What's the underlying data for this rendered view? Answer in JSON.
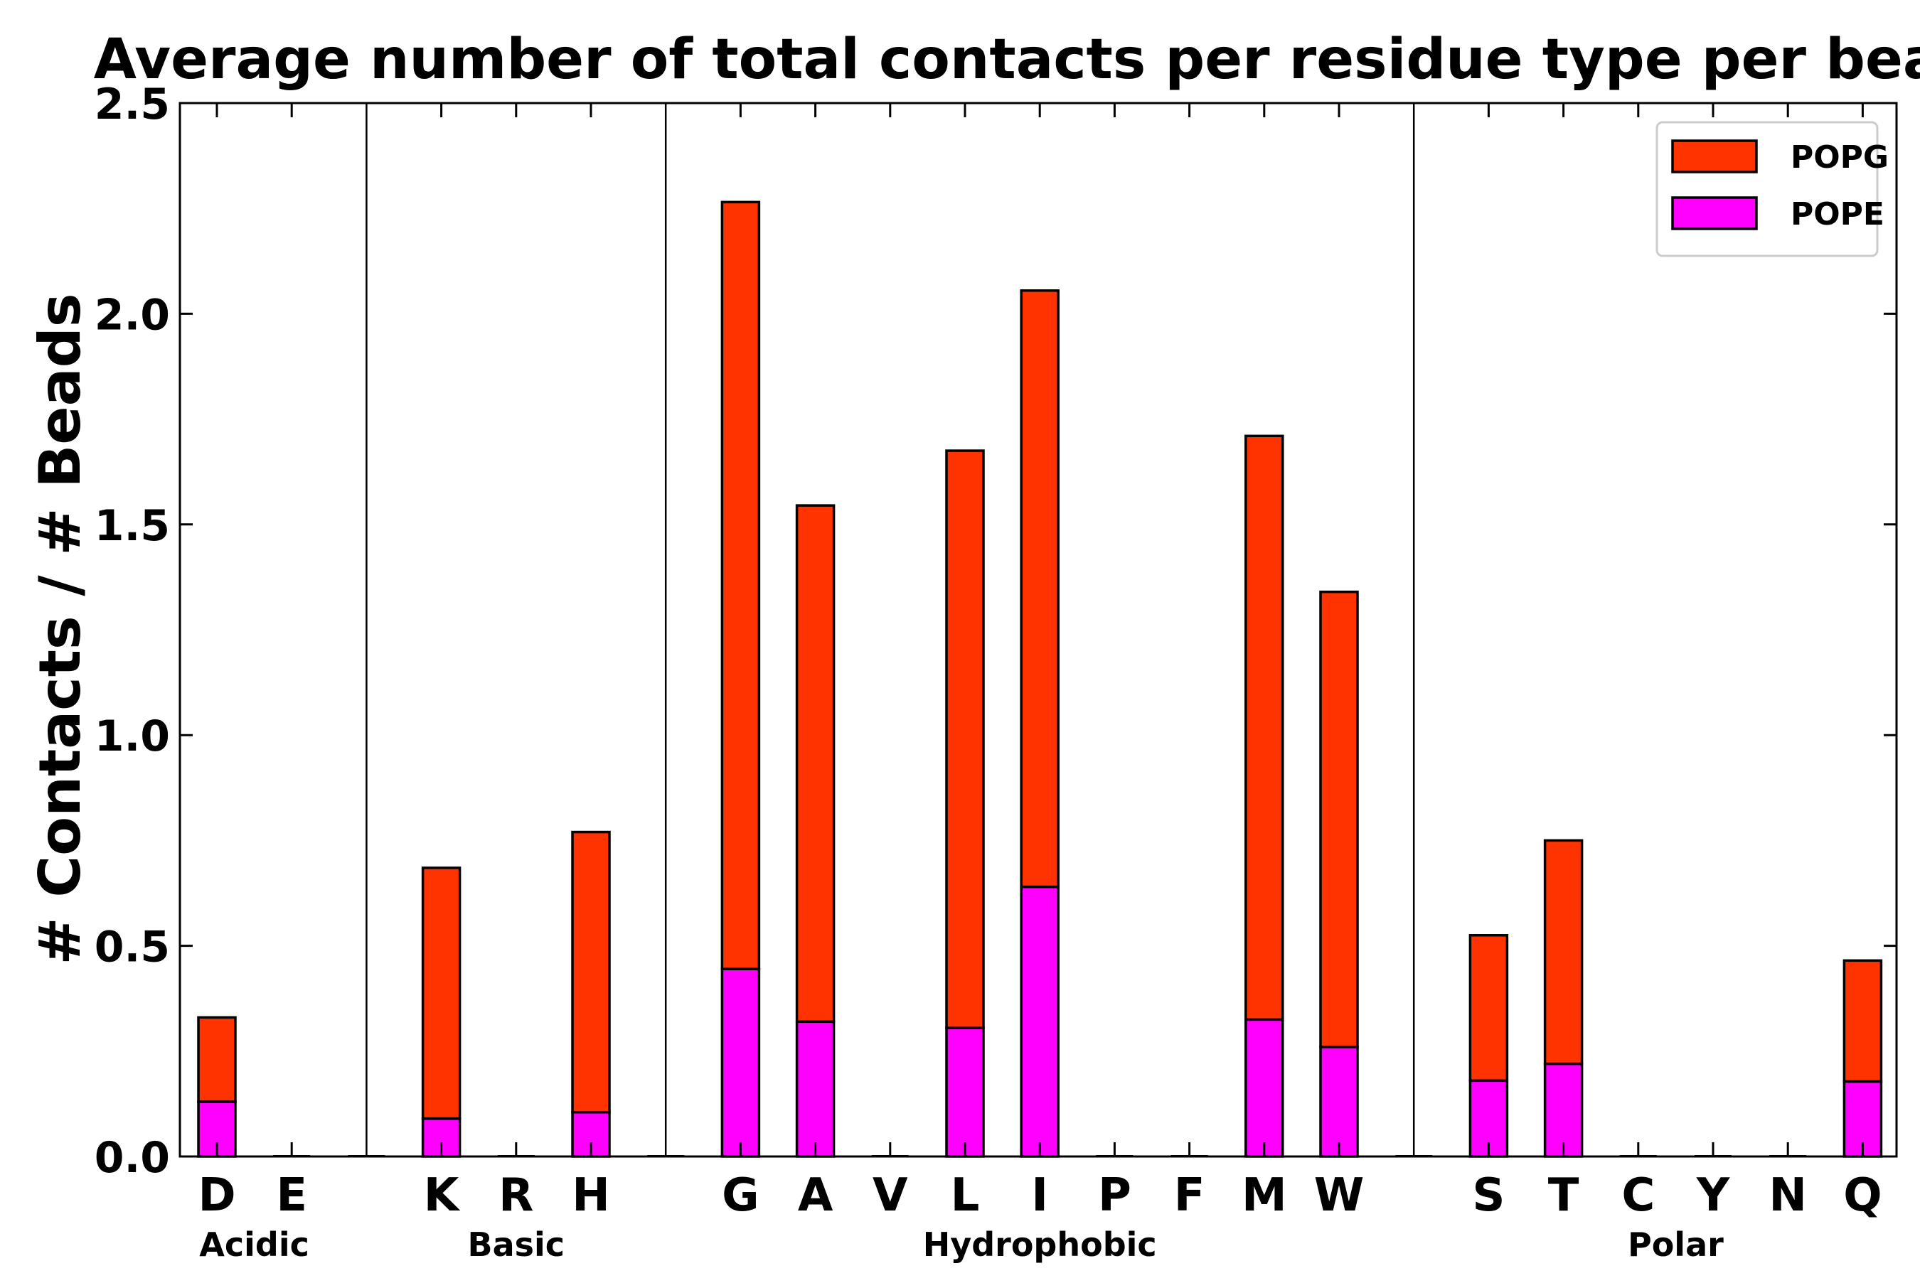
{
  "chart_data": {
    "type": "bar",
    "stacked": true,
    "title": "Average number of total contacts per residue type per bead",
    "xlabel": "",
    "ylabel": "# Contacts / # Beads",
    "ylim": [
      0,
      2.5
    ],
    "yticks": [
      "0.0",
      "0.5",
      "1.0",
      "1.5",
      "2.0",
      "2.5"
    ],
    "legend_position": "top-right",
    "categories": [
      "D",
      "E",
      "K",
      "R",
      "H",
      "G",
      "A",
      "V",
      "L",
      "I",
      "P",
      "F",
      "M",
      "W",
      "S",
      "T",
      "C",
      "Y",
      "N",
      "Q"
    ],
    "groups": [
      {
        "name": "Acidic",
        "members": [
          "D",
          "E"
        ]
      },
      {
        "name": "Basic",
        "members": [
          "K",
          "R",
          "H"
        ]
      },
      {
        "name": "Hydrophobic",
        "members": [
          "G",
          "A",
          "V",
          "L",
          "I",
          "P",
          "F",
          "M",
          "W"
        ]
      },
      {
        "name": "Polar",
        "members": [
          "S",
          "T",
          "C",
          "Y",
          "N",
          "Q"
        ]
      }
    ],
    "series": [
      {
        "name": "POPE",
        "color": "#ff00ff",
        "values": [
          0.13,
          0,
          0.09,
          0,
          0.105,
          0.445,
          0.32,
          0,
          0.305,
          0.64,
          0,
          0,
          0.325,
          0.26,
          0.18,
          0.22,
          0,
          0,
          0,
          0.178
        ]
      },
      {
        "name": "POPG",
        "color": "#ff3300",
        "values": [
          0.2,
          0,
          0.595,
          0,
          0.665,
          1.82,
          1.225,
          0,
          1.37,
          1.415,
          0,
          0,
          1.385,
          1.08,
          0.345,
          0.53,
          0,
          0,
          0,
          0.287
        ]
      }
    ],
    "legend_order": [
      "POPG",
      "POPE"
    ]
  }
}
